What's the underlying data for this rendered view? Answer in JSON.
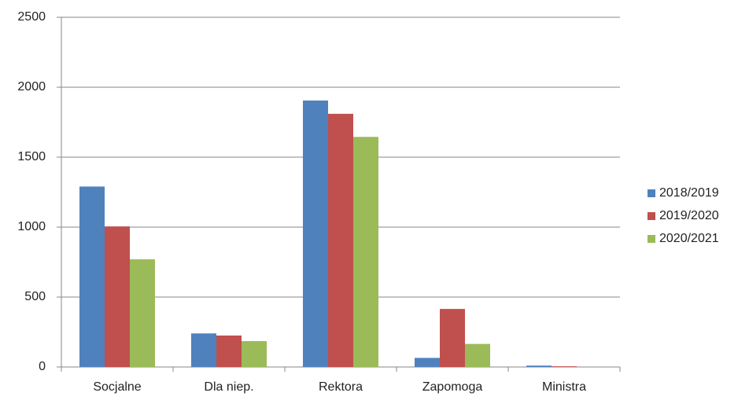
{
  "chart_data": {
    "type": "bar",
    "categories": [
      "Socjalne",
      "Dla niep.",
      "Rektora",
      "Zapomoga",
      "Ministra"
    ],
    "series": [
      {
        "name": "2018/2019",
        "color": "#4f81bd",
        "values": [
          1290,
          240,
          1905,
          65,
          10
        ]
      },
      {
        "name": "2019/2020",
        "color": "#c0504d",
        "values": [
          1005,
          225,
          1810,
          415,
          5
        ]
      },
      {
        "name": "2020/2021",
        "color": "#9bbb59",
        "values": [
          770,
          185,
          1645,
          165,
          0
        ]
      }
    ],
    "ylim": [
      0,
      2500
    ],
    "yticks": [
      0,
      500,
      1000,
      1500,
      2000,
      2500
    ],
    "grid": true,
    "legend": "right"
  }
}
